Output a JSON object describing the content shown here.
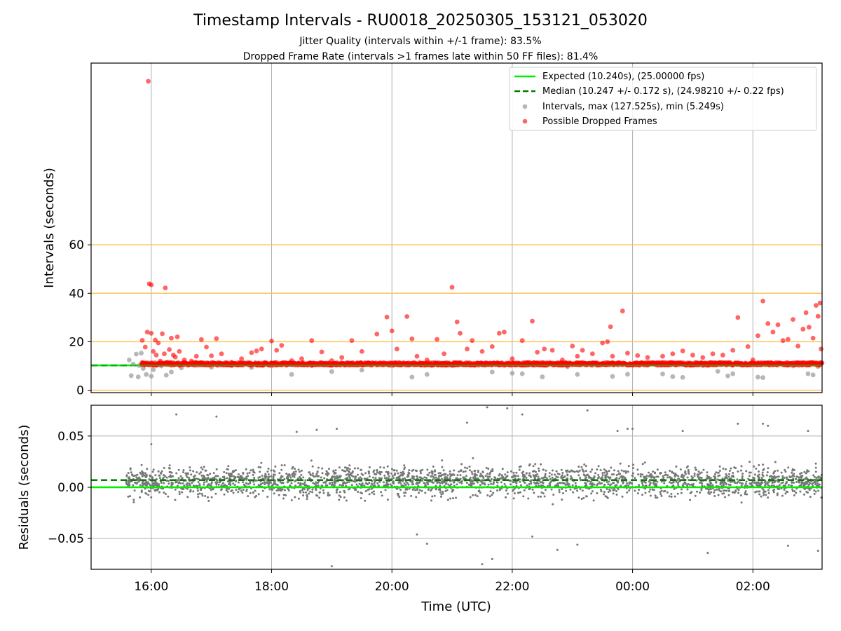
{
  "chart_data": {
    "type": "scatter",
    "title": "Timestamp Intervals - RU0018_20250305_153121_053020",
    "subtitles": [
      "Jitter Quality (intervals within +/-1 frame): 83.5%",
      "Dropped Frame Rate (intervals >1 frames late within 50 FF files): 81.4%"
    ],
    "xlabel": "Time (UTC)",
    "x_tick_labels": [
      "16:00",
      "18:00",
      "20:00",
      "22:00",
      "00:00",
      "02:00"
    ],
    "xlim": [
      "15:00",
      "03:09"
    ],
    "grid": true,
    "panels": [
      {
        "ylabel": "Intervals (seconds)",
        "ylim": [
          -1,
          135
        ],
        "y_ticks": [
          0,
          20,
          40,
          60
        ],
        "horizontal_reference_lines": {
          "values": [
            0,
            20,
            40,
            60
          ],
          "color": "#ffc04d"
        },
        "legend_position": "top-right",
        "legend": [
          "Expected (10.240s), (25.00000 fps)",
          "Median (10.247 +/- 0.172 s), (24.98210 +/- 0.22 fps)",
          "Intervals, max (127.525s), min (5.249s)",
          "Possible Dropped Frames"
        ],
        "series": [
          {
            "name": "Expected (10.240s), (25.00000 fps)",
            "kind": "hline",
            "value": 10.24,
            "color": "#00ee00",
            "style": "solid"
          },
          {
            "name": "Median (10.247 +/- 0.172 s), (24.98210 +/- 0.22 fps)",
            "kind": "hline",
            "value": 10.247,
            "color": "#007f00",
            "style": "dashed"
          },
          {
            "name": "Intervals, max (127.525s), min (5.249s)",
            "kind": "scatter",
            "color": "#999999",
            "points": [
              [
                "15:38",
                12.5
              ],
              [
                "15:40",
                6.0
              ],
              [
                "15:42",
                10.8
              ],
              [
                "15:45",
                14.9
              ],
              [
                "15:47",
                5.5
              ],
              [
                "15:48",
                10.2
              ],
              [
                "15:50",
                15.3
              ],
              [
                "15:52",
                9.0
              ],
              [
                "15:55",
                6.5
              ],
              [
                "15:57",
                10.5
              ],
              [
                "16:00",
                5.8
              ],
              [
                "16:02",
                8.5
              ],
              [
                "16:10",
                10.0
              ],
              [
                "16:15",
                6.2
              ],
              [
                "16:20",
                7.5
              ],
              [
                "16:30",
                9.2
              ],
              [
                "16:45",
                10.3
              ],
              [
                "17:00",
                9.5
              ],
              [
                "17:20",
                10.1
              ],
              [
                "17:40",
                9.4
              ],
              [
                "18:00",
                10.0
              ],
              [
                "18:20",
                6.5
              ],
              [
                "18:40",
                10.2
              ],
              [
                "19:00",
                7.7
              ],
              [
                "19:30",
                8.3
              ],
              [
                "20:00",
                10.0
              ],
              [
                "20:20",
                5.4
              ],
              [
                "20:35",
                6.5
              ],
              [
                "21:00",
                10.1
              ],
              [
                "21:30",
                10.4
              ],
              [
                "21:40",
                7.5
              ],
              [
                "22:00",
                7.0
              ],
              [
                "22:10",
                6.8
              ],
              [
                "22:30",
                5.5
              ],
              [
                "22:55",
                9.7
              ],
              [
                "23:05",
                6.5
              ],
              [
                "23:20",
                10.3
              ],
              [
                "23:40",
                5.7
              ],
              [
                "23:55",
                6.6
              ],
              [
                "00:30",
                6.7
              ],
              [
                "00:40",
                5.6
              ],
              [
                "00:50",
                5.3
              ],
              [
                "01:10",
                10.2
              ],
              [
                "01:25",
                7.8
              ],
              [
                "01:35",
                5.9
              ],
              [
                "01:40",
                6.8
              ],
              [
                "02:05",
                5.4
              ],
              [
                "02:10",
                5.2
              ],
              [
                "02:40",
                10.0
              ],
              [
                "02:55",
                6.8
              ],
              [
                "03:00",
                6.3
              ],
              [
                "03:05",
                9.8
              ]
            ]
          },
          {
            "name": "Possible Dropped Frames",
            "kind": "scatter",
            "color": "#ff0000",
            "band": {
              "from": "15:50",
              "to": "03:09",
              "y_min": 10.3,
              "y_max": 11.4
            },
            "points": [
              [
                "15:51",
                20.6
              ],
              [
                "15:53",
                10.5
              ],
              [
                "15:54",
                17.8
              ],
              [
                "15:56",
                24.0
              ],
              [
                "15:57",
                127.5
              ],
              [
                "15:58",
                43.9
              ],
              [
                "16:00",
                43.5
              ],
              [
                "16:00",
                23.5
              ],
              [
                "16:02",
                16.0
              ],
              [
                "16:04",
                20.7
              ],
              [
                "16:05",
                14.5
              ],
              [
                "16:07",
                19.5
              ],
              [
                "16:09",
                12.0
              ],
              [
                "16:11",
                23.3
              ],
              [
                "16:13",
                15.0
              ],
              [
                "16:14",
                42.2
              ],
              [
                "16:16",
                11.5
              ],
              [
                "16:18",
                16.8
              ],
              [
                "16:20",
                21.5
              ],
              [
                "16:22",
                14.5
              ],
              [
                "16:24",
                13.7
              ],
              [
                "16:26",
                22.0
              ],
              [
                "16:28",
                16.0
              ],
              [
                "16:33",
                12.5
              ],
              [
                "16:40",
                12.0
              ],
              [
                "16:45",
                14.0
              ],
              [
                "16:50",
                20.9
              ],
              [
                "16:55",
                17.8
              ],
              [
                "17:00",
                14.2
              ],
              [
                "17:05",
                21.3
              ],
              [
                "17:10",
                15.0
              ],
              [
                "17:20",
                11.5
              ],
              [
                "17:30",
                13.0
              ],
              [
                "17:40",
                15.5
              ],
              [
                "17:45",
                16.2
              ],
              [
                "17:50",
                17.0
              ],
              [
                "18:00",
                20.3
              ],
              [
                "18:05",
                16.5
              ],
              [
                "18:10",
                18.5
              ],
              [
                "18:20",
                12.2
              ],
              [
                "18:30",
                13.0
              ],
              [
                "18:40",
                20.5
              ],
              [
                "18:50",
                15.8
              ],
              [
                "19:00",
                12.2
              ],
              [
                "19:10",
                13.5
              ],
              [
                "19:20",
                20.5
              ],
              [
                "19:30",
                16.0
              ],
              [
                "19:45",
                23.2
              ],
              [
                "19:55",
                30.2
              ],
              [
                "20:00",
                24.5
              ],
              [
                "20:05",
                17.0
              ],
              [
                "20:15",
                30.4
              ],
              [
                "20:20",
                21.2
              ],
              [
                "20:25",
                14.0
              ],
              [
                "20:35",
                12.5
              ],
              [
                "20:45",
                21.0
              ],
              [
                "20:52",
                15.0
              ],
              [
                "21:00",
                42.5
              ],
              [
                "21:05",
                28.2
              ],
              [
                "21:08",
                23.5
              ],
              [
                "21:15",
                17.0
              ],
              [
                "21:20",
                20.5
              ],
              [
                "21:30",
                16.0
              ],
              [
                "21:40",
                18.0
              ],
              [
                "21:47",
                23.5
              ],
              [
                "21:52",
                24.0
              ],
              [
                "22:00",
                13.0
              ],
              [
                "22:10",
                20.5
              ],
              [
                "22:20",
                28.5
              ],
              [
                "22:25",
                15.7
              ],
              [
                "22:32",
                17.0
              ],
              [
                "22:40",
                16.5
              ],
              [
                "22:50",
                12.5
              ],
              [
                "23:00",
                18.2
              ],
              [
                "23:05",
                14.0
              ],
              [
                "23:10",
                16.5
              ],
              [
                "23:20",
                15.0
              ],
              [
                "23:30",
                19.5
              ],
              [
                "23:35",
                20.0
              ],
              [
                "23:38",
                26.2
              ],
              [
                "23:40",
                14.0
              ],
              [
                "23:50",
                32.7
              ],
              [
                "23:55",
                15.3
              ],
              [
                "00:05",
                14.3
              ],
              [
                "00:15",
                13.5
              ],
              [
                "00:30",
                14.0
              ],
              [
                "00:40",
                15.0
              ],
              [
                "00:50",
                16.2
              ],
              [
                "01:00",
                14.5
              ],
              [
                "01:10",
                13.5
              ],
              [
                "01:20",
                15.0
              ],
              [
                "01:30",
                14.5
              ],
              [
                "01:40",
                16.5
              ],
              [
                "01:45",
                30.0
              ],
              [
                "01:55",
                18.0
              ],
              [
                "02:00",
                12.5
              ],
              [
                "02:05",
                22.5
              ],
              [
                "02:10",
                36.8
              ],
              [
                "02:15",
                27.5
              ],
              [
                "02:20",
                24.0
              ],
              [
                "02:25",
                27.0
              ],
              [
                "02:30",
                20.5
              ],
              [
                "02:35",
                21.0
              ],
              [
                "02:40",
                29.2
              ],
              [
                "02:45",
                18.2
              ],
              [
                "02:50",
                25.2
              ],
              [
                "02:53",
                32.0
              ],
              [
                "02:56",
                26.0
              ],
              [
                "03:00",
                21.5
              ],
              [
                "03:03",
                35.0
              ],
              [
                "03:05",
                30.5
              ],
              [
                "03:07",
                36.0
              ],
              [
                "03:08",
                17.0
              ]
            ]
          }
        ]
      },
      {
        "ylabel": "Residuals (seconds)",
        "ylim": [
          -0.08,
          0.08
        ],
        "y_tick_labels": [
          "−0.05",
          "0.00",
          "0.05"
        ],
        "y_tick_values": [
          -0.05,
          0.0,
          0.05
        ],
        "series": [
          {
            "name": "expected_line",
            "kind": "hline",
            "value": 0.0,
            "color": "#00ee00",
            "style": "solid"
          },
          {
            "name": "median_line",
            "kind": "hline",
            "value": 0.007,
            "color": "#007f00",
            "style": "dashed"
          },
          {
            "name": "residuals",
            "kind": "scatter",
            "color": "#777777",
            "band": {
              "from": "15:35",
              "to": "03:09",
              "mean": 0.006,
              "spread": 0.012
            },
            "points": [
              [
                "16:00",
                0.042
              ],
              [
                "16:25",
                0.071
              ],
              [
                "17:05",
                0.069
              ],
              [
                "18:25",
                0.054
              ],
              [
                "18:45",
                0.056
              ],
              [
                "19:05",
                0.057
              ],
              [
                "20:25",
                -0.046
              ],
              [
                "20:35",
                -0.055
              ],
              [
                "21:15",
                0.063
              ],
              [
                "21:30",
                -0.075
              ],
              [
                "21:35",
                0.078
              ],
              [
                "21:40",
                -0.07
              ],
              [
                "21:55",
                0.077
              ],
              [
                "22:10",
                0.071
              ],
              [
                "22:20",
                -0.048
              ],
              [
                "22:45",
                -0.061
              ],
              [
                "23:05",
                -0.056
              ],
              [
                "23:15",
                0.075
              ],
              [
                "23:45",
                0.055
              ],
              [
                "23:55",
                0.057
              ],
              [
                "00:00",
                0.057
              ],
              [
                "00:50",
                0.055
              ],
              [
                "01:15",
                -0.064
              ],
              [
                "01:45",
                0.062
              ],
              [
                "02:10",
                0.062
              ],
              [
                "02:15",
                0.06
              ],
              [
                "02:35",
                -0.057
              ],
              [
                "02:55",
                0.055
              ],
              [
                "03:05",
                -0.062
              ],
              [
                "19:00",
                -0.077
              ]
            ]
          }
        ]
      }
    ]
  }
}
